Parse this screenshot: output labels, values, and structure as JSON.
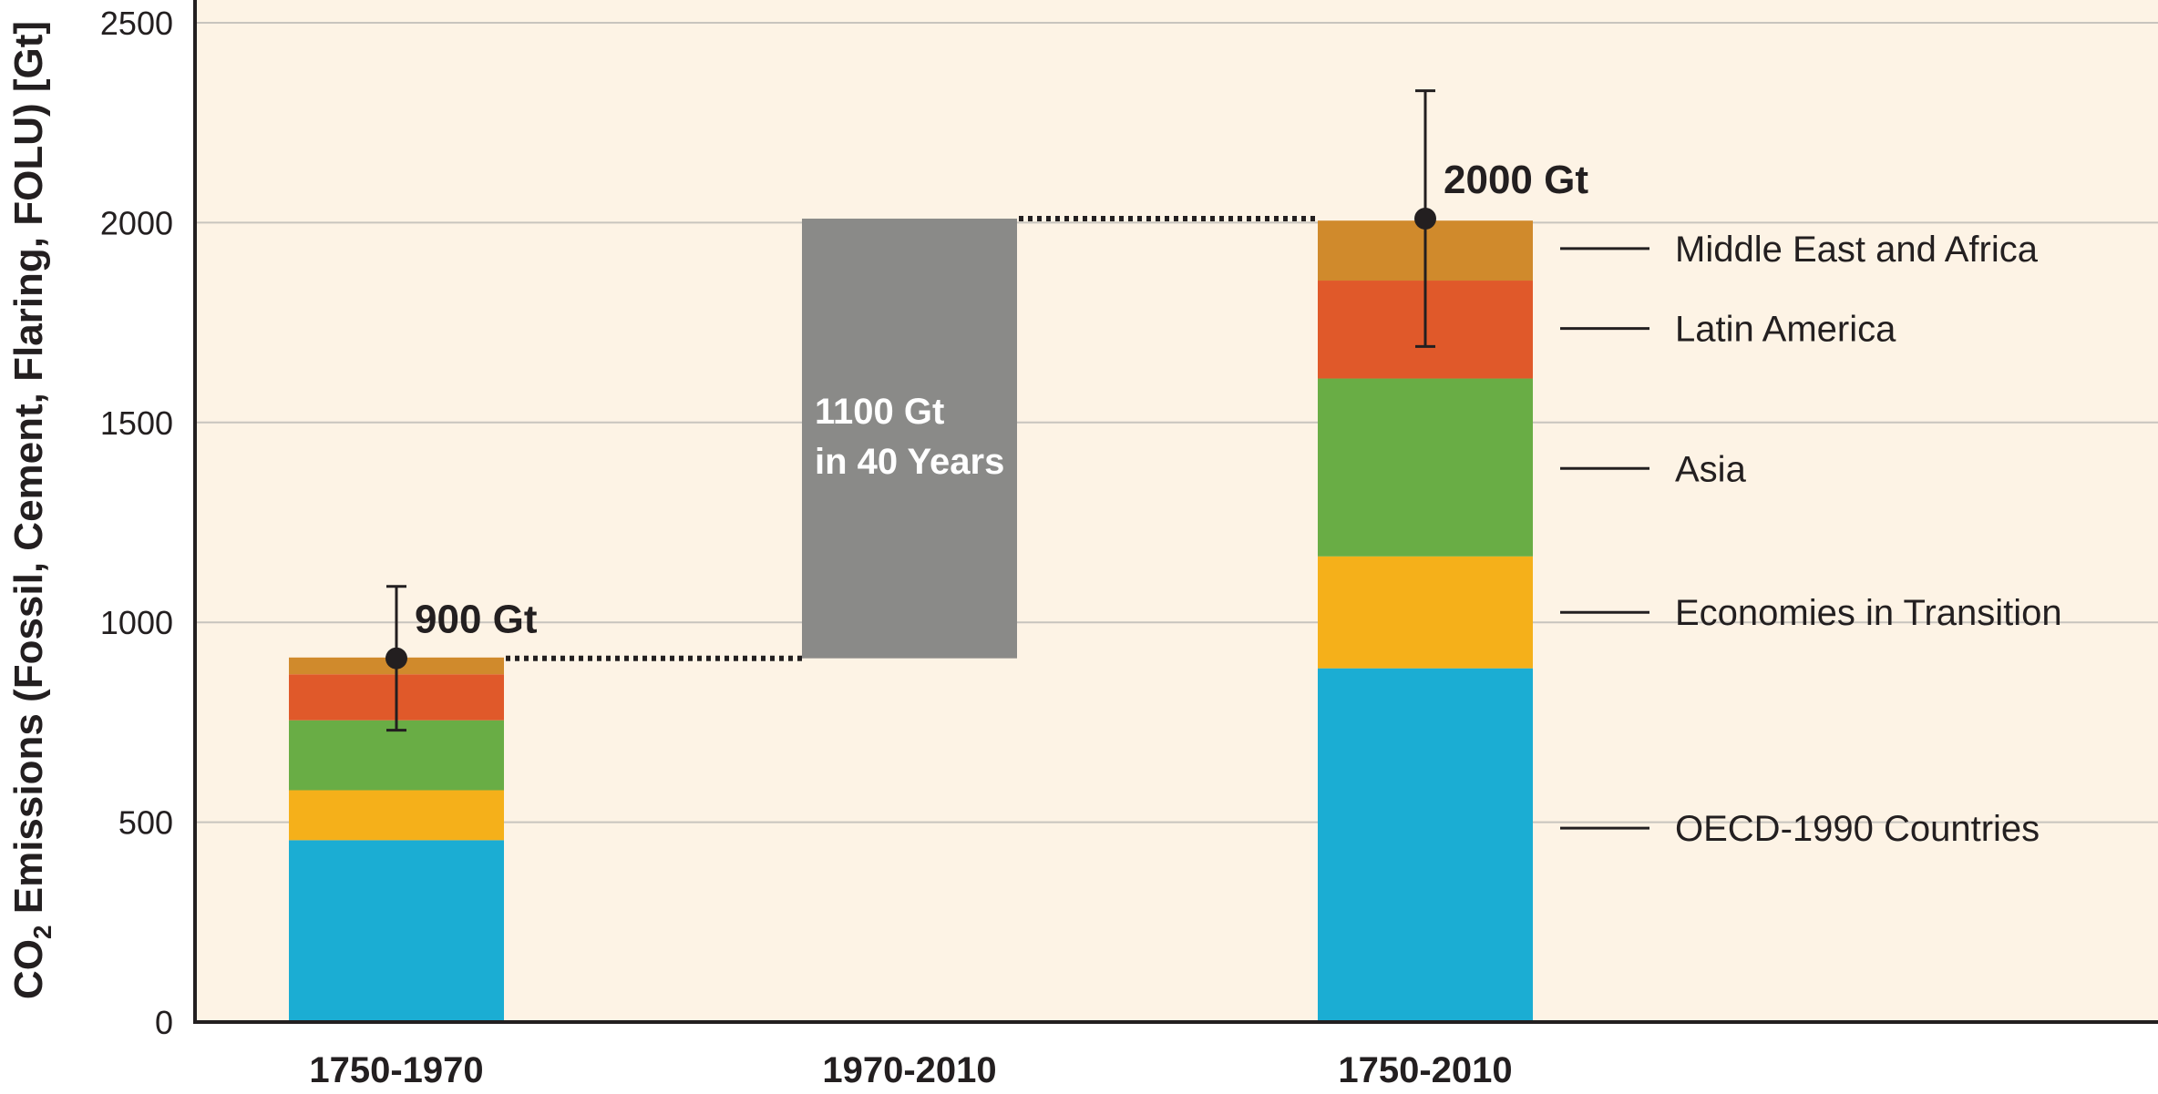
{
  "chart_data": {
    "type": "bar",
    "ylabel": "CO2 Emissions (Fossil, Cement, Flaring, FOLU) [Gt]",
    "ylabel_parts": {
      "pre": "CO",
      "sub": "2",
      "post": " Emissions (Fossil, Cement, Flaring, FOLU) [Gt]"
    },
    "ylim": [
      0,
      2500
    ],
    "yticks": [
      0,
      500,
      1000,
      1500,
      2000,
      2500
    ],
    "grid": true,
    "categories": [
      "1750-1970",
      "1970-2010",
      "1750-2010"
    ],
    "series": [
      {
        "name": "OECD-1990 Countries",
        "color": "#1badd3",
        "values": [
          455,
          null,
          885
        ]
      },
      {
        "name": "Economies in Transition",
        "color": "#f5b01a",
        "values": [
          125,
          null,
          280
        ]
      },
      {
        "name": "Asia",
        "color": "#69ad45",
        "values": [
          175,
          null,
          445
        ]
      },
      {
        "name": "Latin America",
        "color": "#e0592a",
        "values": [
          115,
          null,
          245
        ]
      },
      {
        "name": "Middle East and Africa",
        "color": "#d08a2c",
        "values": [
          42,
          null,
          150
        ]
      }
    ],
    "increment": {
      "category": "1970-2010",
      "from": 910,
      "to": 2010,
      "color": "#8a8a88",
      "label_lines": [
        "1100 Gt",
        "in 40 Years"
      ]
    },
    "totals": [
      {
        "category": "1750-1970",
        "value": 910,
        "label": "900 Gt",
        "err_low": 730,
        "err_high": 1090
      },
      {
        "category": "1750-2010",
        "value": 2010,
        "label": "2000 Gt",
        "err_low": 1690,
        "err_high": 2330
      }
    ],
    "legend": {
      "placement": "right",
      "items": [
        {
          "label": "Middle East and Africa",
          "value": 1935
        },
        {
          "label": "Latin America",
          "value": 1735
        },
        {
          "label": "Asia",
          "value": 1385
        },
        {
          "label": "Economies in Transition",
          "value": 1025
        },
        {
          "label": "OECD-1990 Countries",
          "value": 485
        }
      ]
    },
    "colors": {
      "background": "#fdf3e5",
      "axis": "#231f20",
      "grid": "#c8c4be"
    }
  }
}
